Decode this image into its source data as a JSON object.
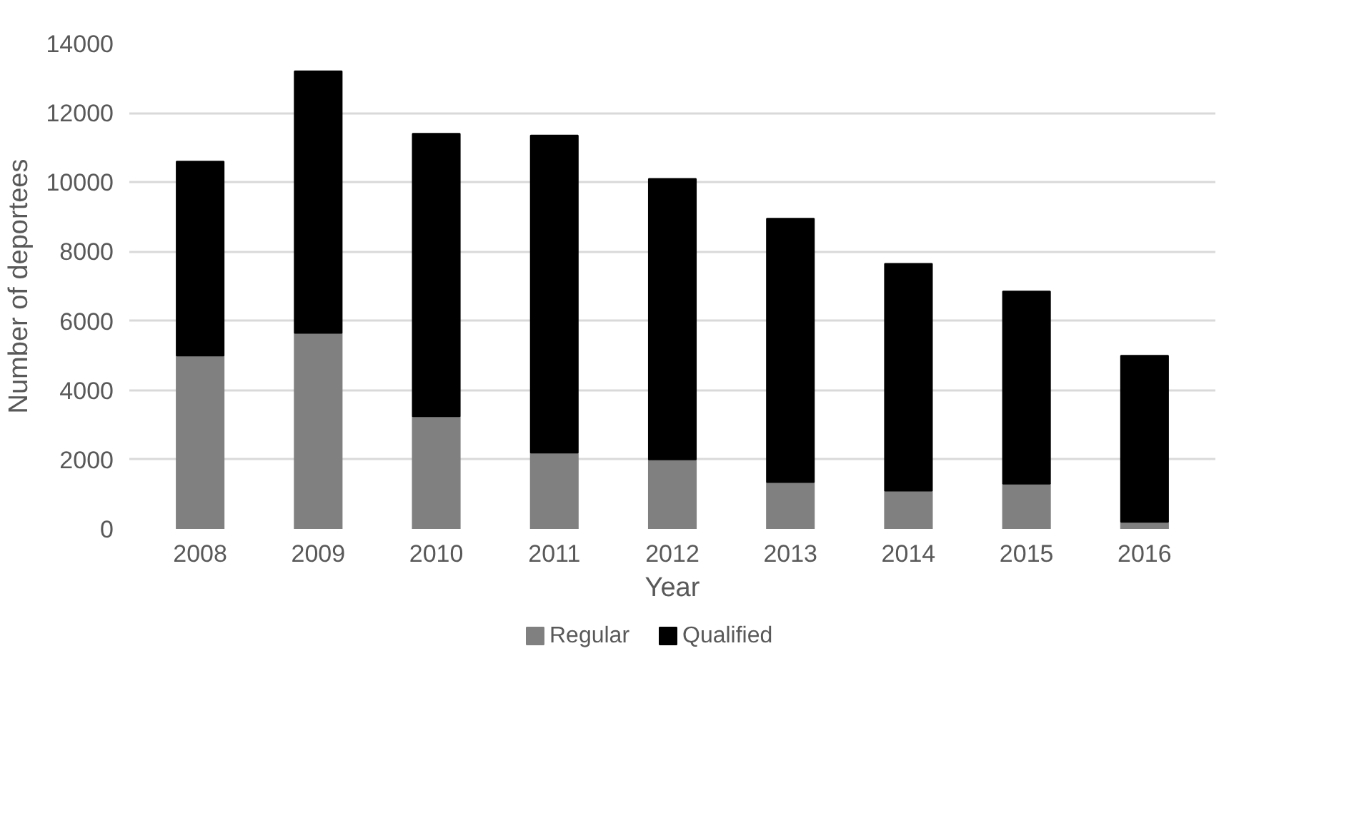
{
  "chart_data": {
    "type": "bar",
    "stacked": true,
    "xlabel": "Year",
    "ylabel": "Number of deportees",
    "categories": [
      "2008",
      "2009",
      "2010",
      "2011",
      "2012",
      "2013",
      "2014",
      "2015",
      "2016"
    ],
    "series": [
      {
        "name": "Regular",
        "color": "#808080",
        "values": [
          5000,
          5650,
          3250,
          2200,
          2000,
          1350,
          1100,
          1300,
          200
        ]
      },
      {
        "name": "Qualified",
        "color": "#000000",
        "values": [
          5600,
          7550,
          8150,
          9150,
          8100,
          7600,
          6550,
          5550,
          4800
        ]
      }
    ],
    "ylim": [
      0,
      14000
    ],
    "yticks": [
      0,
      2000,
      4000,
      6000,
      8000,
      10000,
      12000,
      14000
    ],
    "grid": "y",
    "legend": "bottom"
  }
}
